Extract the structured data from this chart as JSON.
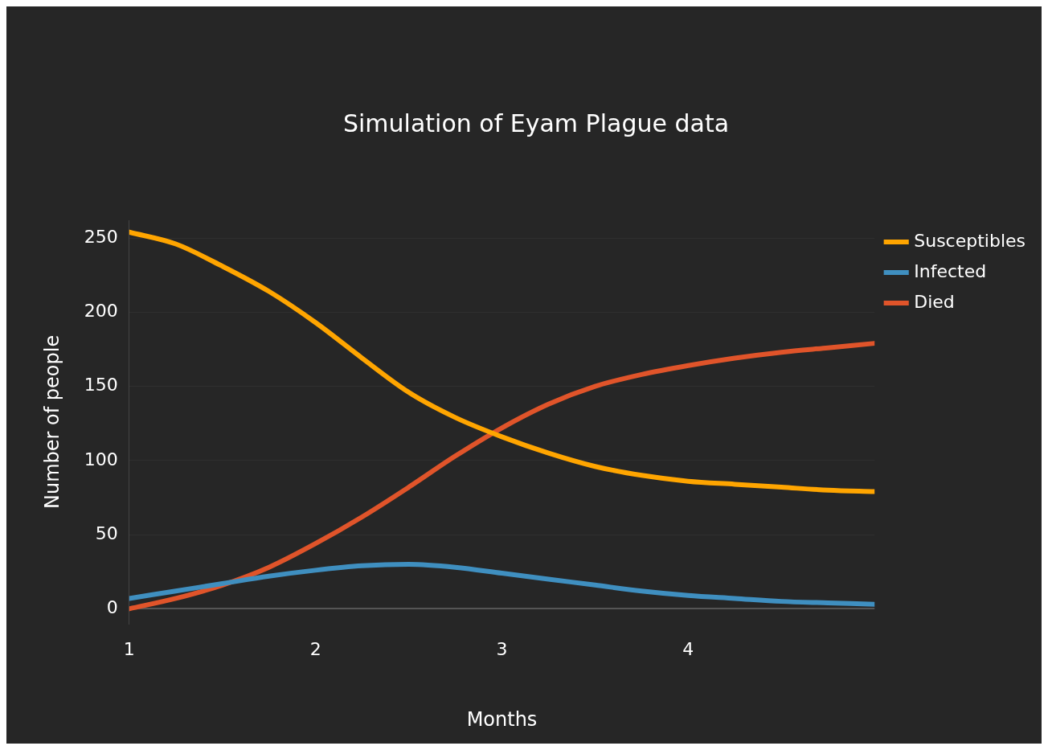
{
  "chart_data": {
    "type": "line",
    "title": "Simulation of Eyam Plague data",
    "xlabel": "Months",
    "ylabel": "Number of people",
    "x": [
      1,
      1.25,
      1.5,
      1.75,
      2,
      2.25,
      2.5,
      2.75,
      3,
      3.25,
      3.5,
      3.75,
      4,
      4.25,
      4.5,
      4.75,
      5
    ],
    "xlim": [
      1,
      5
    ],
    "xticks": [
      1,
      2,
      3,
      4
    ],
    "ylim": [
      -10,
      262
    ],
    "yticks": [
      0,
      50,
      100,
      150,
      200,
      250
    ],
    "grid": "y",
    "legend": "top right",
    "marker": "none",
    "line_style": "solid",
    "series": [
      {
        "name": "Susceptibles",
        "color": "#ffa500",
        "values": [
          254,
          246,
          231,
          214,
          193,
          169,
          146,
          129,
          116,
          105,
          96,
          90,
          86,
          84,
          82,
          80,
          79
        ]
      },
      {
        "name": "Infected",
        "color": "#3f8fc0",
        "values": [
          7,
          12,
          17,
          22,
          26,
          29,
          30,
          28,
          24,
          20,
          16,
          12,
          9,
          7,
          5,
          4,
          3
        ]
      },
      {
        "name": "Died",
        "color": "#e0542a",
        "values": [
          0,
          7,
          16,
          28,
          44,
          62,
          82,
          103,
          122,
          138,
          150,
          158,
          164,
          169,
          173,
          176,
          179
        ]
      }
    ]
  }
}
